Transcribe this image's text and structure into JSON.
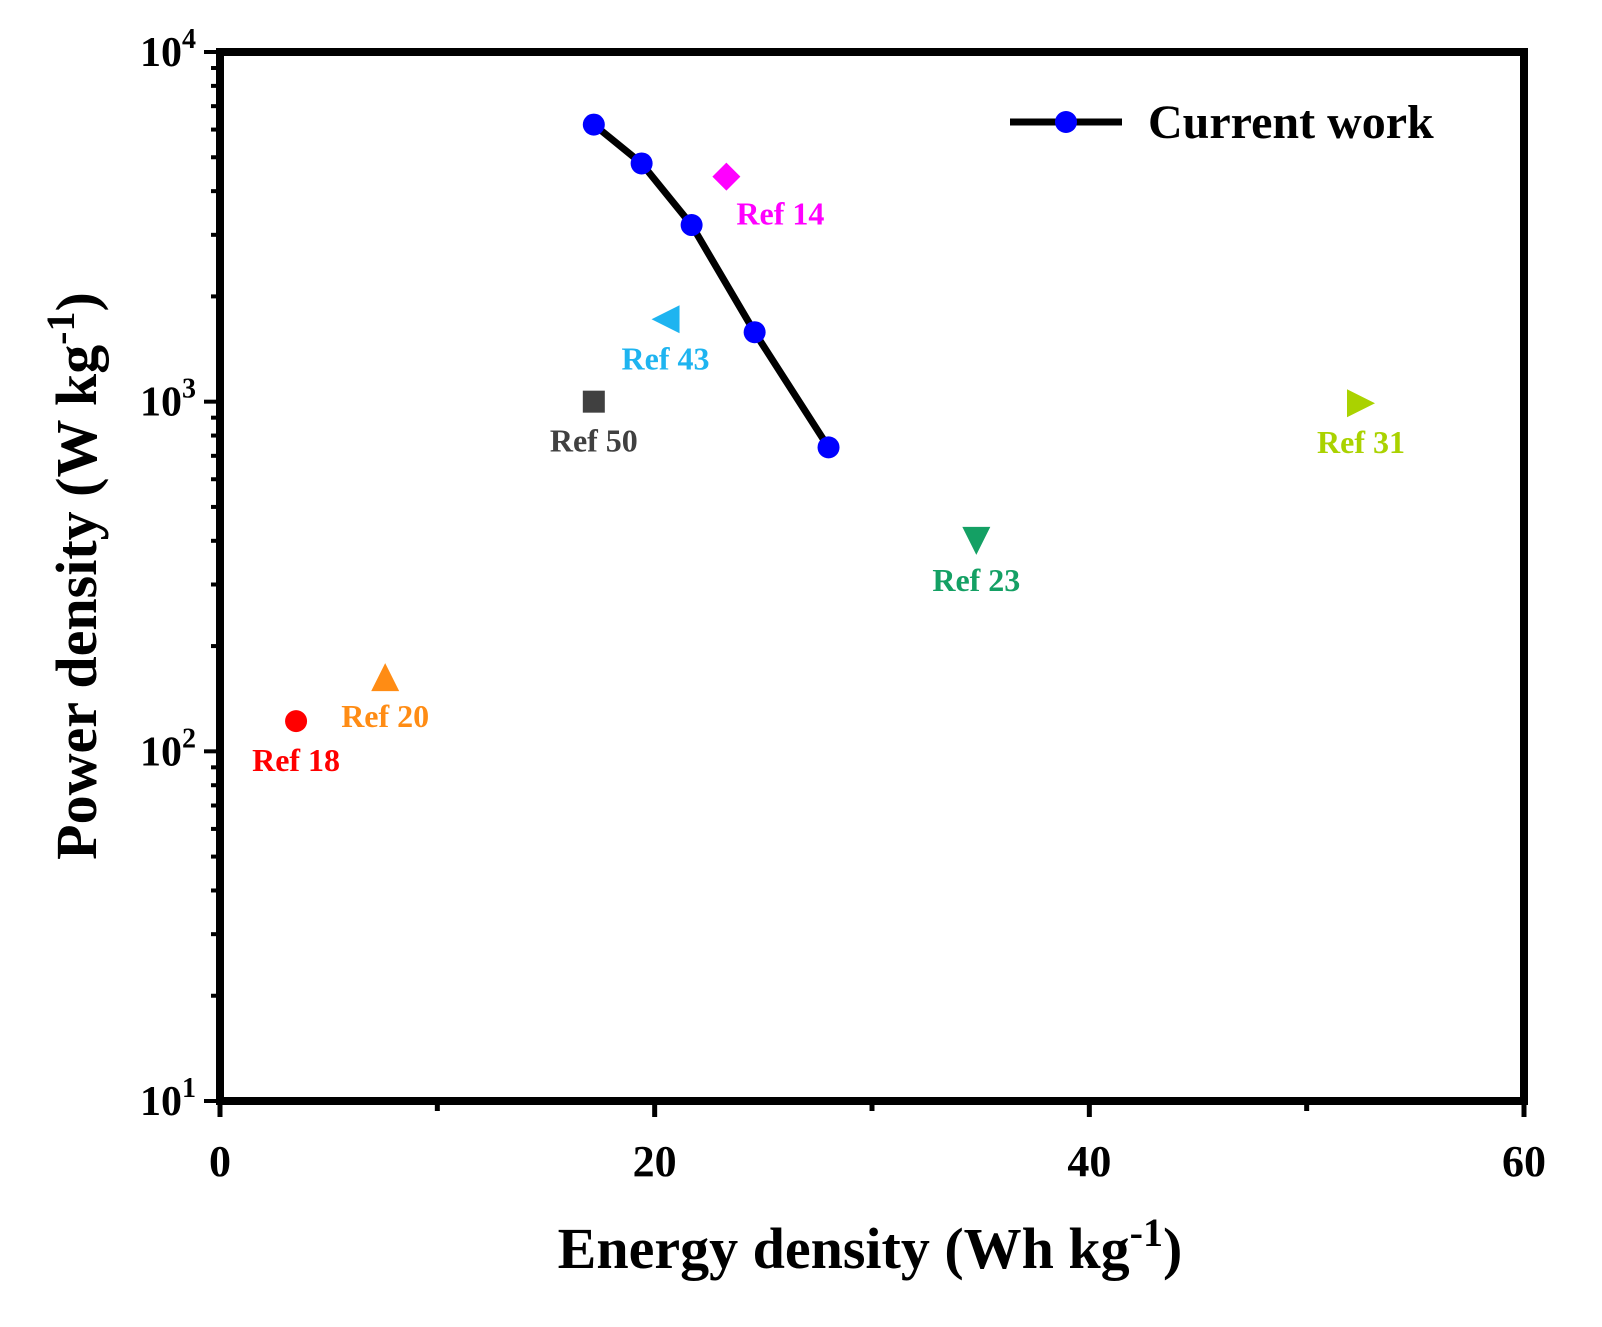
{
  "chart_data": {
    "type": "scatter",
    "xlabel": "Energy density (Wh kg",
    "xlabel_sup": "-1",
    "xlabel_close": ")",
    "ylabel": "Power density (W kg",
    "ylabel_sup": "-1",
    "ylabel_close": ")",
    "xlim": [
      0,
      60
    ],
    "ylim": [
      10,
      10000
    ],
    "yscale": "log",
    "x_ticks": [
      {
        "value": 0,
        "label": "0"
      },
      {
        "value": 20,
        "label": "20"
      },
      {
        "value": 40,
        "label": "40"
      },
      {
        "value": 60,
        "label": "60"
      }
    ],
    "y_ticks": [
      {
        "value": 10,
        "base": "10",
        "exp": "1"
      },
      {
        "value": 100,
        "base": "10",
        "exp": "2"
      },
      {
        "value": 1000,
        "base": "10",
        "exp": "3"
      },
      {
        "value": 10000,
        "base": "10",
        "exp": "4"
      }
    ],
    "legend_position": "top-right",
    "series": [
      {
        "name": "Current work",
        "style": "line-marker",
        "color": "#0000ff",
        "line_color": "#000000",
        "x": [
          17.2,
          19.4,
          21.7,
          24.6,
          28.0
        ],
        "y": [
          6200,
          4800,
          3200,
          1580,
          740
        ]
      }
    ],
    "references": [
      {
        "name": "Ref 14",
        "x": 23.3,
        "y": 4400,
        "marker": "diamond",
        "color": "#ff00ff",
        "label_pos": "below-right"
      },
      {
        "name": "Ref 43",
        "x": 20.5,
        "y": 1720,
        "marker": "triangle-left",
        "color": "#1eb4f0",
        "label_pos": "below"
      },
      {
        "name": "Ref 50",
        "x": 17.2,
        "y": 1000,
        "marker": "square",
        "color": "#404040",
        "label_pos": "below"
      },
      {
        "name": "Ref 31",
        "x": 52.5,
        "y": 990,
        "marker": "triangle-right",
        "color": "#aad200",
        "label_pos": "below"
      },
      {
        "name": "Ref 23",
        "x": 34.8,
        "y": 400,
        "marker": "triangle-down",
        "color": "#14a064",
        "label_pos": "below"
      },
      {
        "name": "Ref 20",
        "x": 7.6,
        "y": 163,
        "marker": "triangle-up",
        "color": "#ff8c14",
        "label_pos": "below"
      },
      {
        "name": "Ref 18",
        "x": 3.5,
        "y": 122,
        "marker": "circle",
        "color": "#ff0000",
        "label_pos": "below"
      }
    ]
  }
}
